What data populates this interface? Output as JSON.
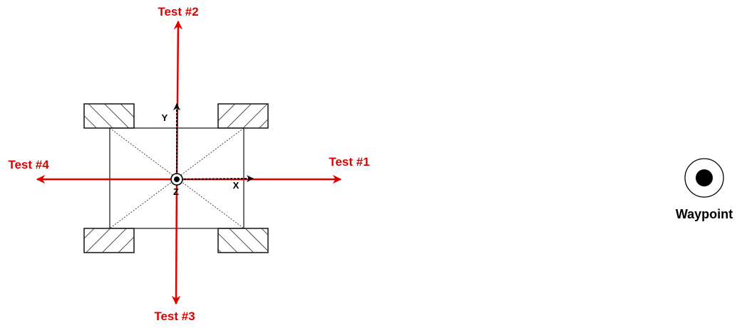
{
  "tests": {
    "test1": "Test #1",
    "test2": "Test #2",
    "test3": "Test #3",
    "test4": "Test #4"
  },
  "axes": {
    "x": "X",
    "y": "Y",
    "z": "Z"
  },
  "waypoint": {
    "label": "Waypoint"
  },
  "colors": {
    "test_arrow": "#e00000",
    "robot_outline": "#222222",
    "axis_arrow": "#000000"
  }
}
